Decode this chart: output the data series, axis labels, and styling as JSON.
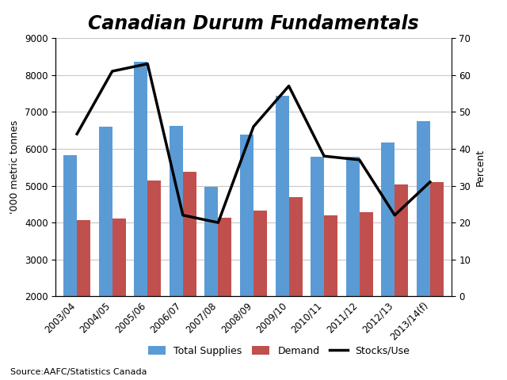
{
  "title": "Canadian Durum Fundamentals",
  "categories": [
    "2003/04",
    "2004/05",
    "2005/06",
    "2006/07",
    "2007/08",
    "2008/09",
    "2009/10",
    "2010/11",
    "2011/12",
    "2012/13",
    "2013/14(f)"
  ],
  "total_supplies": [
    5825,
    6600,
    8350,
    6625,
    4975,
    6375,
    7425,
    5775,
    5775,
    6175,
    6750
  ],
  "demand": [
    4075,
    4100,
    5150,
    5375,
    4125,
    4325,
    4700,
    4200,
    4275,
    5025,
    5100
  ],
  "stocks_use": [
    44,
    61,
    63,
    22,
    20,
    46,
    57,
    38,
    37,
    22,
    31
  ],
  "bar_color_supplies": "#5b9bd5",
  "bar_color_demand": "#c0504d",
  "line_color": "#000000",
  "ylabel_left": "'000 metric tonnes",
  "ylabel_right": "Percent",
  "ylim_left": [
    2000,
    9000
  ],
  "ylim_right": [
    0,
    70
  ],
  "yticks_left": [
    2000,
    3000,
    4000,
    5000,
    6000,
    7000,
    8000,
    9000
  ],
  "yticks_right": [
    0,
    10,
    20,
    30,
    40,
    50,
    60,
    70
  ],
  "source_text": "Source:AAFC/Statistics Canada",
  "legend_labels": [
    "Total Supplies",
    "Demand",
    "Stocks/Use"
  ],
  "background_color": "#ffffff",
  "grid_color": "#c8c8c8",
  "title_fontsize": 17,
  "label_fontsize": 9,
  "tick_fontsize": 8.5,
  "bar_width": 0.38
}
